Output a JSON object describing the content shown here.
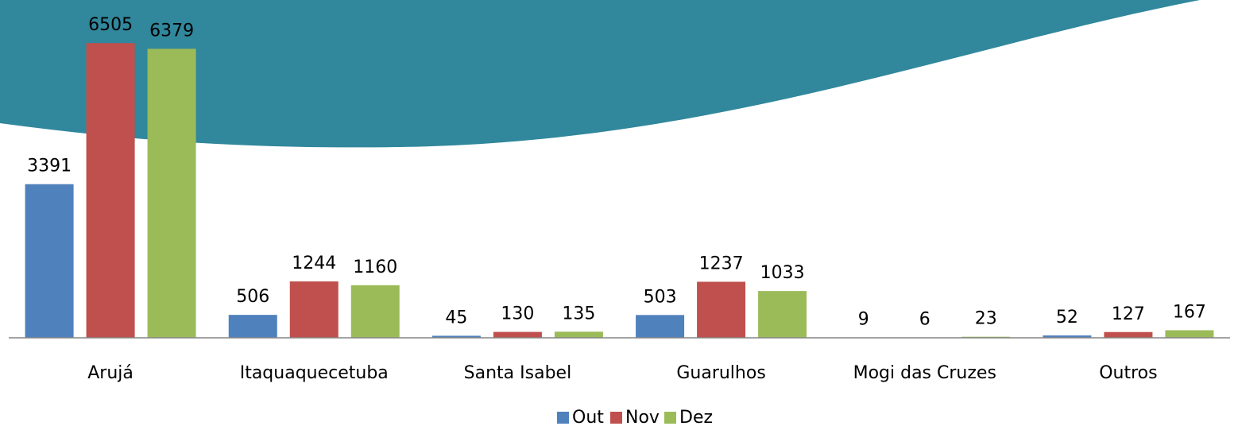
{
  "chart_data": {
    "type": "bar",
    "categories": [
      "Arujá",
      "Itaquaquecetuba",
      "Santa Isabel",
      "Guarulhos",
      "Mogi das Cruzes",
      "Outros"
    ],
    "series": [
      {
        "name": "Out",
        "color": "#4f81bd",
        "values": [
          3391,
          506,
          45,
          503,
          9,
          52
        ]
      },
      {
        "name": "Nov",
        "color": "#c0504d",
        "values": [
          6505,
          1244,
          130,
          1237,
          6,
          127
        ]
      },
      {
        "name": "Dez",
        "color": "#9bbb59",
        "values": [
          6379,
          1160,
          135,
          1033,
          23,
          167
        ]
      }
    ],
    "ylim": [
      0,
      7000
    ],
    "legend": "bottom"
  }
}
